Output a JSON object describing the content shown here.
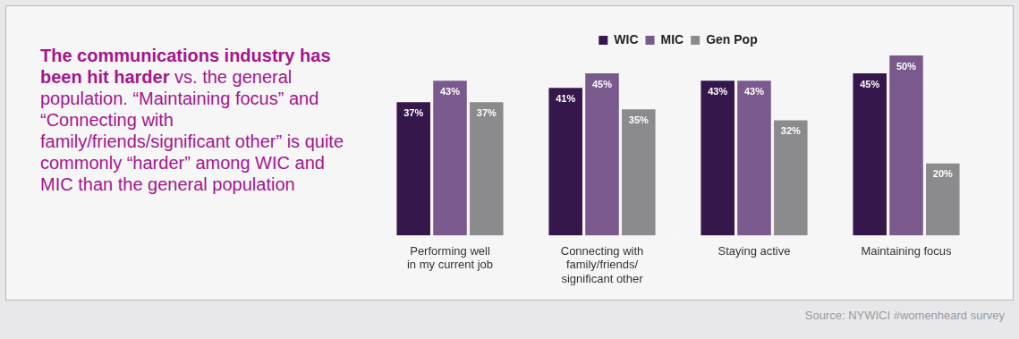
{
  "chart_data": {
    "type": "bar",
    "title": "The communications industry has been hit harder",
    "subtitle": "vs. the general population. “Maintaining focus” and “Connecting with family/friends/significant other” is quite commonly “harder” among WIC and MIC than the general population",
    "annotations": [
      "Source: NYWICI #womenheard survey"
    ],
    "categories": [
      [
        "Performing well",
        "in my current job"
      ],
      [
        "Connecting with",
        "family/friends/",
        "significant other"
      ],
      [
        "Staying active"
      ],
      [
        "Maintaining focus"
      ]
    ],
    "series": [
      {
        "name": "WIC",
        "color": "#35174b",
        "values": [
          37,
          41,
          43,
          45
        ],
        "value_labels": [
          "37%",
          "41%",
          "43%",
          "45%"
        ]
      },
      {
        "name": "MIC",
        "color": "#7a5a8c",
        "values": [
          43,
          45,
          43,
          50
        ],
        "value_labels": [
          "43%",
          "45%",
          "43%",
          "50%"
        ]
      },
      {
        "name": "Gen Pop",
        "color": "#8b8b8d",
        "values": [
          37,
          35,
          32,
          20
        ],
        "value_labels": [
          "37%",
          "35%",
          "32%",
          "20%"
        ]
      }
    ],
    "ylim": [
      0,
      50
    ],
    "tick_labels": "x",
    "grid": false,
    "legend": "top",
    "data_labels": true
  }
}
